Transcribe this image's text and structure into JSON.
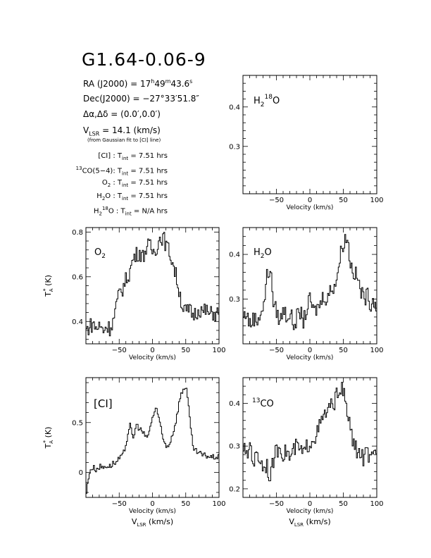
{
  "header": {
    "title": "G1.64-0.06-9",
    "ra": {
      "label": "RA (J2000) = ",
      "h": "17",
      "m": "49",
      "s": "43.6"
    },
    "dec": {
      "label": "Dec(J2000) = ",
      "value": "−27°33′51.8″"
    },
    "offset": {
      "label": "Δα,Δδ = ",
      "value": "(0.0′,0.0′)"
    },
    "vlsr": {
      "label": "V",
      "sub": "LSR",
      "value": " = 14.1 (km/s)"
    },
    "vlsr_note": "(from Gaussian fit to [CI] line)"
  },
  "integration_times": [
    {
      "species": "[CI]",
      "value": "7.51 hrs"
    },
    {
      "species": "13CO(5−4)",
      "value": "7.51 hrs"
    },
    {
      "species": "O2",
      "value": "7.51 hrs"
    },
    {
      "species": "H2O",
      "value": "7.51 hrs"
    },
    {
      "species": "H2 18O",
      "value": "N/A hrs"
    }
  ],
  "colors": {
    "line": "#000000",
    "background": "#ffffff"
  },
  "chart_data": [
    {
      "type": "line",
      "panel": "h2-18o",
      "label": "H2 18O",
      "xlabel": "Velocity (km/s)",
      "xlim": [
        -100,
        100
      ],
      "ylim": [
        0.18,
        0.48
      ],
      "xticks": [
        -50,
        0,
        50,
        100
      ],
      "yticks": [
        0.3,
        0.4
      ],
      "series": []
    },
    {
      "type": "line",
      "panel": "o2",
      "label": "O2",
      "xlabel": "Velocity (km/s)",
      "ylabel": "T*A (K)",
      "xlim": [
        -100,
        100
      ],
      "ylim": [
        0.3,
        0.82
      ],
      "xticks": [
        -50,
        0,
        50,
        100
      ],
      "yticks": [
        0.4,
        0.6,
        0.8
      ],
      "series": [
        {
          "x": [
            -100,
            -95,
            -90,
            -85,
            -80,
            -75,
            -70,
            -65,
            -60,
            -55,
            -50,
            -45,
            -40,
            -35,
            -30,
            -25,
            -20,
            -15,
            -10,
            -5,
            0,
            5,
            10,
            15,
            20,
            25,
            30,
            35,
            40,
            45,
            50,
            55,
            60,
            65,
            70,
            75,
            80,
            85,
            90,
            95,
            100
          ],
          "values": [
            0.36,
            0.38,
            0.39,
            0.37,
            0.38,
            0.36,
            0.38,
            0.37,
            0.4,
            0.47,
            0.53,
            0.55,
            0.59,
            0.62,
            0.68,
            0.7,
            0.71,
            0.69,
            0.73,
            0.74,
            0.71,
            0.73,
            0.77,
            0.78,
            0.74,
            0.71,
            0.66,
            0.6,
            0.53,
            0.46,
            0.44,
            0.45,
            0.43,
            0.44,
            0.46,
            0.44,
            0.45,
            0.43,
            0.44,
            0.43,
            0.45
          ]
        }
      ]
    },
    {
      "type": "line",
      "panel": "h2o",
      "label": "H2O",
      "xlabel": "Velocity (km/s)",
      "xlim": [
        -100,
        100
      ],
      "ylim": [
        0.2,
        0.46
      ],
      "xticks": [
        -50,
        0,
        50,
        100
      ],
      "yticks": [
        0.3,
        0.4
      ],
      "series": [
        {
          "x": [
            -100,
            -95,
            -90,
            -85,
            -80,
            -75,
            -70,
            -65,
            -60,
            -55,
            -50,
            -45,
            -40,
            -35,
            -30,
            -25,
            -20,
            -15,
            -10,
            -5,
            0,
            5,
            10,
            15,
            20,
            25,
            30,
            35,
            40,
            45,
            50,
            55,
            60,
            65,
            70,
            75,
            80,
            85,
            90,
            95,
            100
          ],
          "values": [
            0.26,
            0.27,
            0.24,
            0.26,
            0.25,
            0.27,
            0.28,
            0.35,
            0.37,
            0.29,
            0.27,
            0.25,
            0.28,
            0.26,
            0.27,
            0.24,
            0.26,
            0.27,
            0.25,
            0.28,
            0.3,
            0.27,
            0.28,
            0.29,
            0.31,
            0.3,
            0.32,
            0.33,
            0.35,
            0.4,
            0.43,
            0.44,
            0.38,
            0.36,
            0.35,
            0.32,
            0.3,
            0.31,
            0.29,
            0.3,
            0.28
          ]
        }
      ]
    },
    {
      "type": "line",
      "panel": "ci",
      "label": "[CI]",
      "xlabel": "Velocity (km/s)",
      "ylabel": "T*A (K)",
      "xlim": [
        -100,
        100
      ],
      "ylim": [
        -0.25,
        0.95
      ],
      "xticks": [
        -50,
        0,
        50,
        100
      ],
      "yticks": [
        0,
        0.5
      ],
      "series": [
        {
          "x": [
            -100,
            -95,
            -90,
            -85,
            -80,
            -75,
            -70,
            -65,
            -60,
            -55,
            -50,
            -45,
            -40,
            -35,
            -30,
            -25,
            -20,
            -15,
            -10,
            -5,
            0,
            5,
            10,
            15,
            20,
            25,
            30,
            35,
            40,
            45,
            50,
            55,
            60,
            65,
            70,
            75,
            80,
            85,
            90,
            95,
            100
          ],
          "values": [
            -0.2,
            0.02,
            0.05,
            0.03,
            0.06,
            0.05,
            0.07,
            0.06,
            0.09,
            0.1,
            0.14,
            0.17,
            0.3,
            0.49,
            0.33,
            0.48,
            0.44,
            0.4,
            0.34,
            0.42,
            0.57,
            0.66,
            0.5,
            0.33,
            0.26,
            0.29,
            0.4,
            0.53,
            0.73,
            0.83,
            0.87,
            0.55,
            0.25,
            0.21,
            0.19,
            0.17,
            0.17,
            0.16,
            0.15,
            0.16,
            0.15
          ]
        }
      ]
    },
    {
      "type": "line",
      "panel": "13co",
      "label": "13CO",
      "xlabel": "Velocity (km/s)",
      "xlim": [
        -100,
        100
      ],
      "ylim": [
        0.18,
        0.46
      ],
      "xticks": [
        -50,
        0,
        50,
        100
      ],
      "yticks": [
        0.2,
        0.3,
        0.4
      ],
      "series": [
        {
          "x": [
            -100,
            -95,
            -90,
            -85,
            -80,
            -75,
            -70,
            -65,
            -60,
            -55,
            -50,
            -45,
            -40,
            -35,
            -30,
            -25,
            -20,
            -15,
            -10,
            -5,
            0,
            5,
            10,
            15,
            20,
            25,
            30,
            35,
            40,
            45,
            50,
            55,
            60,
            65,
            70,
            75,
            80,
            85,
            90,
            95,
            100
          ],
          "values": [
            0.3,
            0.27,
            0.31,
            0.26,
            0.28,
            0.27,
            0.25,
            0.26,
            0.22,
            0.27,
            0.29,
            0.3,
            0.28,
            0.29,
            0.27,
            0.29,
            0.3,
            0.29,
            0.28,
            0.3,
            0.31,
            0.32,
            0.33,
            0.35,
            0.37,
            0.38,
            0.39,
            0.4,
            0.42,
            0.44,
            0.42,
            0.38,
            0.34,
            0.3,
            0.29,
            0.28,
            0.27,
            0.29,
            0.26,
            0.28,
            0.27
          ]
        }
      ]
    }
  ],
  "axis_caption": {
    "vlsr_main": "V",
    "vlsr_sub": "LSR",
    "vlsr_unit": " (km/s)"
  },
  "panel_labels": {
    "h2_18o": {
      "main": "H",
      "sub": "2",
      "sup": "18",
      "tail": "O"
    },
    "o2": {
      "main": "O",
      "sub": "2"
    },
    "h2o": {
      "main": "H",
      "sub": "2",
      "tail": "O"
    },
    "ci": "[CI]",
    "co13": {
      "sup": "13",
      "tail": "CO"
    }
  }
}
